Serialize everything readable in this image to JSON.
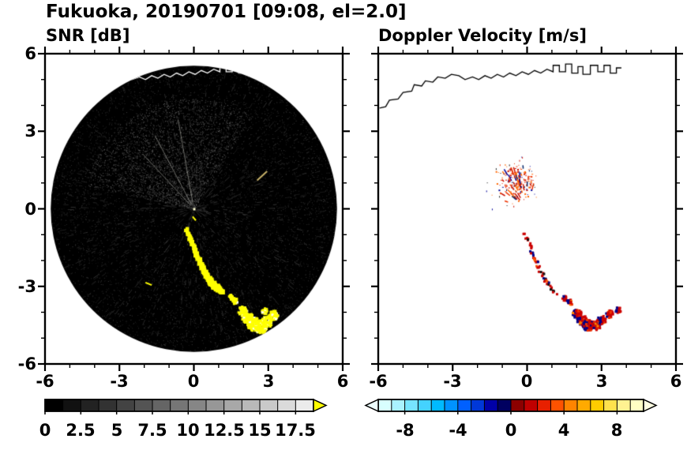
{
  "title": "Fukuoka, 20190701 [09:08, el=2.0]",
  "panels": {
    "snr": {
      "title": "SNR [dB]"
    },
    "doppler": {
      "title": "Doppler Velocity [m/s]"
    }
  },
  "axis_labels": {
    "x": [
      "-6",
      "-3",
      "0",
      "3",
      "6"
    ],
    "y": [
      "6",
      "3",
      "0",
      "-3",
      "-6"
    ]
  },
  "colorbar_labels": {
    "snr": [
      "0",
      "2.5",
      "5",
      "7.5",
      "10",
      "12.5",
      "15",
      "17.5"
    ],
    "doppler": [
      "-8",
      "-4",
      "0",
      "4",
      "8"
    ]
  },
  "coastline": [
    [
      -5.95,
      3.9
    ],
    [
      -5.7,
      3.95
    ],
    [
      -5.55,
      4.2
    ],
    [
      -5.2,
      4.25
    ],
    [
      -5.0,
      4.5
    ],
    [
      -4.65,
      4.55
    ],
    [
      -4.55,
      4.8
    ],
    [
      -4.25,
      4.75
    ],
    [
      -4.1,
      4.95
    ],
    [
      -3.8,
      4.9
    ],
    [
      -3.6,
      5.1
    ],
    [
      -3.3,
      5.05
    ],
    [
      -3.05,
      5.2
    ],
    [
      -2.75,
      5.15
    ],
    [
      -2.5,
      5.0
    ],
    [
      -2.2,
      5.1
    ],
    [
      -1.95,
      5.0
    ],
    [
      -1.7,
      5.15
    ],
    [
      -1.45,
      5.05
    ],
    [
      -1.2,
      5.2
    ],
    [
      -0.95,
      5.1
    ],
    [
      -0.7,
      5.25
    ],
    [
      -0.45,
      5.15
    ],
    [
      -0.2,
      5.3
    ],
    [
      0.05,
      5.2
    ],
    [
      0.3,
      5.35
    ],
    [
      0.55,
      5.25
    ],
    [
      0.8,
      5.4
    ],
    [
      1.05,
      5.3
    ],
    [
      1.05,
      5.55
    ],
    [
      1.3,
      5.55
    ],
    [
      1.3,
      5.3
    ],
    [
      1.55,
      5.3
    ],
    [
      1.55,
      5.6
    ],
    [
      1.8,
      5.6
    ],
    [
      1.8,
      5.25
    ],
    [
      2.05,
      5.25
    ],
    [
      2.05,
      5.5
    ],
    [
      2.25,
      5.5
    ],
    [
      2.25,
      5.2
    ],
    [
      2.55,
      5.2
    ],
    [
      2.55,
      5.55
    ],
    [
      2.85,
      5.55
    ],
    [
      2.85,
      5.3
    ],
    [
      3.1,
      5.3
    ],
    [
      3.1,
      5.55
    ],
    [
      3.35,
      5.55
    ],
    [
      3.35,
      5.25
    ],
    [
      3.6,
      5.25
    ],
    [
      3.6,
      5.45
    ],
    [
      3.8,
      5.45
    ]
  ],
  "chart_data": [
    {
      "type": "heatmap",
      "title": "SNR [dB]",
      "xlim": [
        -6,
        6
      ],
      "ylim": [
        -6,
        6
      ],
      "xticks": [
        -6,
        -3,
        0,
        3,
        6
      ],
      "yticks": [
        -6,
        -3,
        0,
        3,
        6
      ],
      "minor_tick_step": 1,
      "scan_circle": {
        "center": [
          0,
          0
        ],
        "radius": 5.65,
        "background": "#000000"
      },
      "colorbar": {
        "min": 0,
        "max": 18.75,
        "tick_values": [
          0,
          2.5,
          5,
          7.5,
          10,
          12.5,
          15,
          17.5
        ],
        "segment_count": 15,
        "gradient": [
          "#000000",
          "#ebebeb"
        ],
        "overflow_arrow_color": "#ffff00"
      },
      "echo_color": "#ffff00",
      "echo_streak": [
        [
          -0.3,
          -0.8,
          0.07
        ],
        [
          -0.15,
          -1.15,
          0.07
        ],
        [
          0.0,
          -1.5,
          0.08
        ],
        [
          0.15,
          -1.85,
          0.08
        ],
        [
          0.3,
          -2.2,
          0.09
        ],
        [
          0.5,
          -2.55,
          0.1
        ],
        [
          0.7,
          -2.85,
          0.11
        ],
        [
          0.95,
          -3.05,
          0.12
        ],
        [
          1.15,
          -3.2,
          0.1
        ]
      ],
      "echo_blobs": [
        [
          1.5,
          -3.4,
          0.1
        ],
        [
          1.65,
          -3.55,
          0.12
        ],
        [
          1.95,
          -3.95,
          0.18
        ],
        [
          2.15,
          -4.2,
          0.22
        ],
        [
          2.4,
          -4.45,
          0.26
        ],
        [
          2.7,
          -4.55,
          0.26
        ],
        [
          2.95,
          -4.35,
          0.22
        ],
        [
          3.2,
          -4.1,
          0.18
        ],
        [
          2.85,
          -3.95,
          0.12
        ]
      ],
      "echo_dashes": [
        [
          2.55,
          1.1,
          2.95,
          1.45,
          "#c7b26a"
        ],
        [
          -1.95,
          -2.85,
          -1.7,
          -2.95,
          "#ffff00"
        ],
        [
          -0.05,
          -0.3,
          0.08,
          -0.45,
          "#ffff00"
        ]
      ],
      "center_dot": [
        0,
        0
      ]
    },
    {
      "type": "heatmap",
      "title": "Doppler Velocity [m/s]",
      "xlim": [
        -6,
        6
      ],
      "ylim": [
        -6,
        6
      ],
      "xticks": [
        -6,
        -3,
        0,
        3,
        6
      ],
      "yticks": [
        -6,
        -3,
        0,
        3,
        6
      ],
      "minor_tick_step": 1,
      "colorbar": {
        "min": -10,
        "max": 10,
        "tick_values": [
          -8,
          -4,
          0,
          4,
          8
        ],
        "segment_colors": [
          "#d8ffff",
          "#aaf2ff",
          "#77e4ff",
          "#44d2ff",
          "#00baff",
          "#0092ff",
          "#0060ff",
          "#0038d8",
          "#0000a8",
          "#000060",
          "#8c0000",
          "#c00000",
          "#e82000",
          "#ff5200",
          "#ff8400",
          "#ffaa00",
          "#ffcc00",
          "#ffe24d",
          "#fff291",
          "#ffffc4"
        ],
        "underflow_arrow_color": "#ecffff",
        "overflow_arrow_color": "#ffffe2"
      },
      "speckle_cluster": {
        "center": [
          -0.45,
          1.05
        ],
        "rx": 0.85,
        "ry": 0.75,
        "n_dense": 170,
        "n_sparse": 50,
        "sparse_rx": 1.4,
        "sparse_ry": 1.15,
        "colors_pos": [
          "#cc1100",
          "#ee3300",
          "#ff6600"
        ],
        "colors_neg": [
          "#000099",
          "#002266"
        ],
        "neg_fraction": 0.2
      },
      "streak": [
        [
          -0.1,
          -0.9
        ],
        [
          0.05,
          -1.3
        ],
        [
          0.2,
          -1.7
        ],
        [
          0.35,
          -2.05
        ],
        [
          0.55,
          -2.45
        ],
        [
          0.75,
          -2.8
        ],
        [
          0.95,
          -3.05
        ],
        [
          1.15,
          -3.25
        ]
      ],
      "blobs": [
        [
          1.5,
          -3.45,
          0.1
        ],
        [
          1.7,
          -3.6,
          0.12
        ],
        [
          2.0,
          -4.05,
          0.18
        ],
        [
          2.2,
          -4.3,
          0.2
        ],
        [
          2.45,
          -4.5,
          0.22
        ],
        [
          2.75,
          -4.5,
          0.2
        ],
        [
          3.0,
          -4.3,
          0.18
        ],
        [
          3.3,
          -4.05,
          0.15
        ],
        [
          3.65,
          -3.9,
          0.12
        ]
      ]
    }
  ]
}
